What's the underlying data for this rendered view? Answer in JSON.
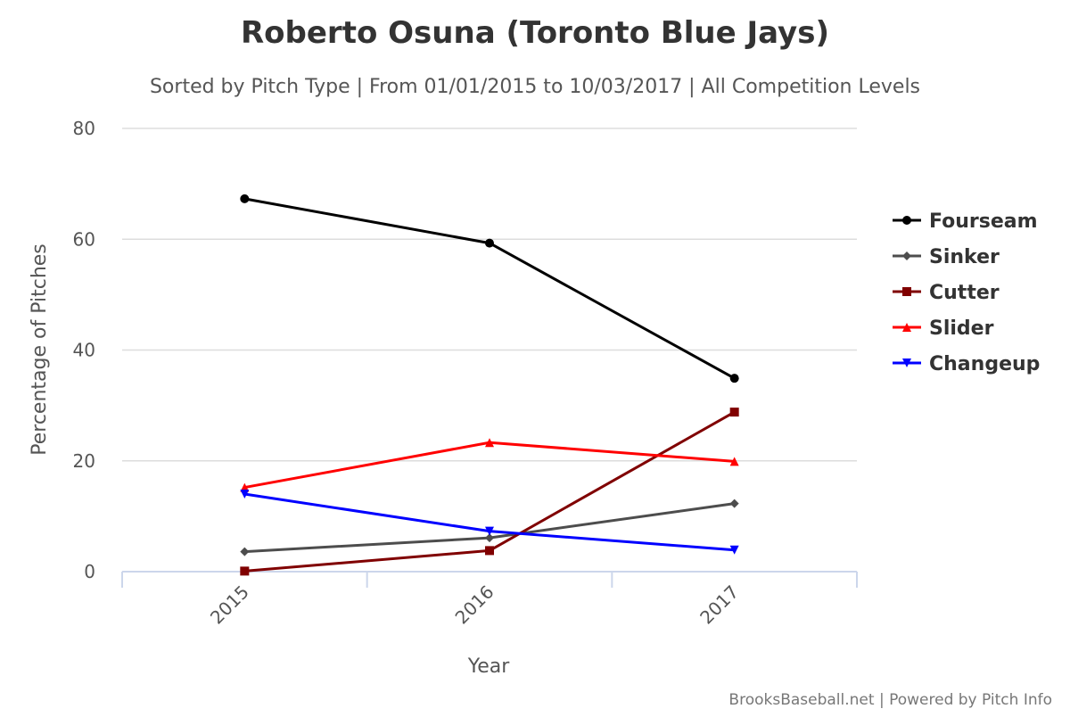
{
  "chart_data": {
    "type": "line",
    "title": "Roberto Osuna (Toronto Blue Jays)",
    "subtitle": "Sorted by Pitch Type | From 01/01/2015 to 10/03/2017 | All Competition Levels",
    "xlabel": "Year",
    "ylabel": "Percentage of Pitches",
    "categories": [
      "2015",
      "2016",
      "2017"
    ],
    "ylim": [
      0,
      80
    ],
    "yticks": [
      0,
      20,
      40,
      60,
      80
    ],
    "grid": true,
    "legend_position": "right",
    "series": [
      {
        "name": "Fourseam",
        "color": "#000000",
        "marker": "circle",
        "values": [
          67.3,
          59.3,
          34.9
        ]
      },
      {
        "name": "Sinker",
        "color": "#4d4d4d",
        "marker": "diamond",
        "values": [
          3.6,
          6.1,
          12.3
        ]
      },
      {
        "name": "Cutter",
        "color": "#800000",
        "marker": "square",
        "values": [
          0.1,
          3.8,
          28.8
        ]
      },
      {
        "name": "Slider",
        "color": "#ff0000",
        "marker": "triangle",
        "values": [
          15.2,
          23.3,
          19.9
        ]
      },
      {
        "name": "Changeup",
        "color": "#0000ff",
        "marker": "triangle-down",
        "values": [
          14.0,
          7.3,
          3.9
        ]
      }
    ]
  },
  "credits": "BrooksBaseball.net | Powered by Pitch Info"
}
